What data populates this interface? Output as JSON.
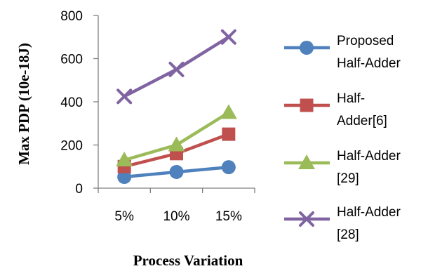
{
  "chart_data": {
    "type": "line",
    "categories": [
      "5%",
      "10%",
      "15%"
    ],
    "xlabel": "Process Variation",
    "ylabel": "Max PDP (10e-18J)",
    "ylim": [
      0,
      800
    ],
    "yticks": [
      "0",
      "200",
      "400",
      "600",
      "800"
    ],
    "grid": false,
    "legend_position": "right",
    "series": [
      {
        "name": "Proposed Half-Adder",
        "label_lines": [
          "Proposed",
          "Half-Adder"
        ],
        "values": [
          52,
          75,
          97
        ],
        "color": "#4F81BD",
        "marker": "circle"
      },
      {
        "name": "Half-Adder[6]",
        "label_lines": [
          "Half-",
          "Adder[6]"
        ],
        "values": [
          100,
          160,
          250
        ],
        "color": "#C0504D",
        "marker": "square"
      },
      {
        "name": "Half-Adder [29]",
        "label_lines": [
          "Half-Adder",
          "[29]"
        ],
        "values": [
          130,
          200,
          350
        ],
        "color": "#9BBB59",
        "marker": "triangle"
      },
      {
        "name": "Half-Adder [28]",
        "label_lines": [
          "Half-Adder",
          "[28]"
        ],
        "values": [
          425,
          550,
          700
        ],
        "color": "#8064A2",
        "marker": "x"
      }
    ]
  }
}
